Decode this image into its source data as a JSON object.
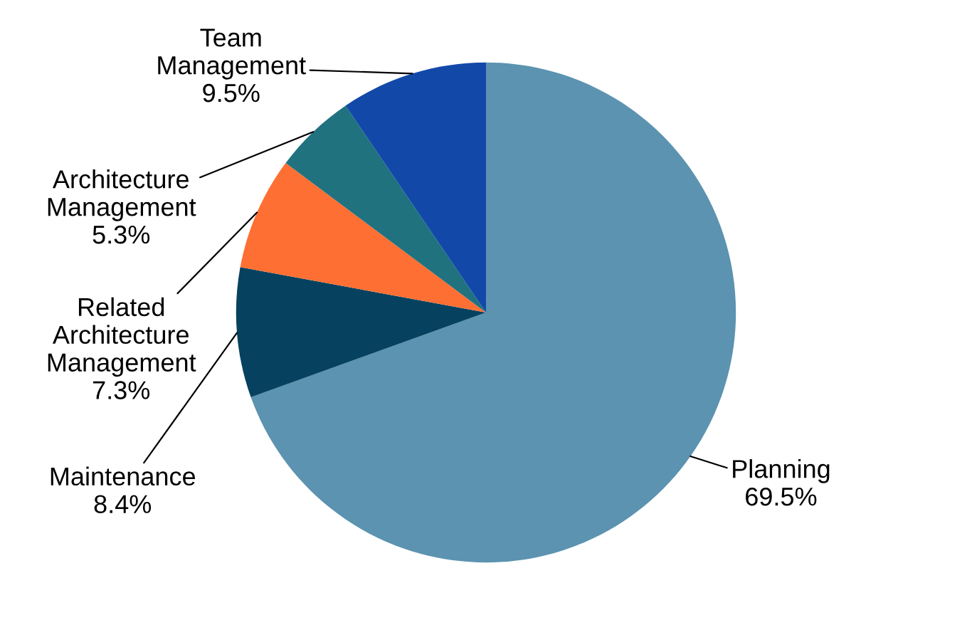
{
  "chart_data": {
    "type": "pie",
    "categories": [
      "Planning",
      "Maintenance",
      "Related\nArchitecture\nManagement",
      "Architecture\nManagement",
      "Team\nManagement"
    ],
    "values": [
      69.5,
      8.4,
      7.3,
      5.3,
      9.5
    ],
    "colors": [
      "#5b93b0",
      "#06425f",
      "#fe6f33",
      "#20727f",
      "#1249a9"
    ],
    "value_labels": [
      "69.5%",
      "8.4%",
      "7.3%",
      "5.3%",
      "9.5%"
    ],
    "legend": false
  }
}
